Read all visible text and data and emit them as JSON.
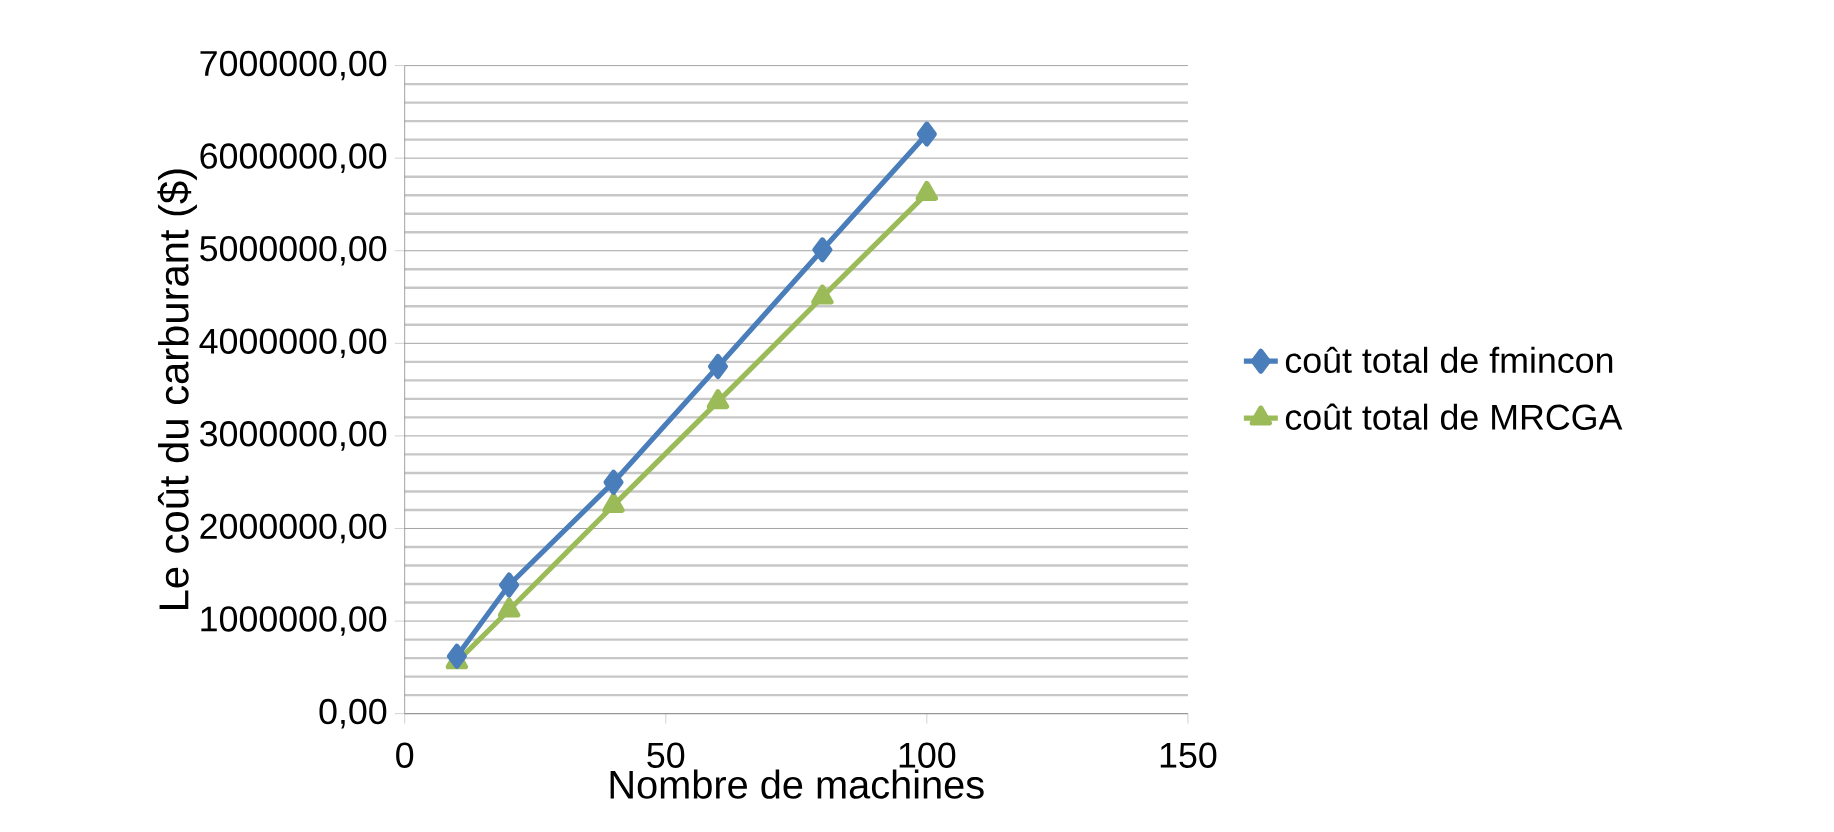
{
  "chart_data": {
    "type": "line",
    "xlabel": "Nombre de machines",
    "ylabel": "Le coût du carburant ($)",
    "x": [
      10,
      20,
      40,
      60,
      80,
      100
    ],
    "series": [
      {
        "name": "coût total  de fmincon",
        "color": "#4a7ebb",
        "marker": "diamond",
        "values": [
          620000,
          1390000,
          2500000,
          3750000,
          5010000,
          6260000
        ]
      },
      {
        "name": "coût total  de MRCGA",
        "color": "#9bbb59",
        "marker": "triangle",
        "values": [
          560000,
          1120000,
          2250000,
          3370000,
          4500000,
          5620000
        ]
      }
    ],
    "xlim": [
      0,
      150
    ],
    "xticks": [
      0,
      50,
      100,
      150
    ],
    "ylim": [
      0,
      7000000
    ],
    "yticks": [
      {
        "value": 0,
        "label": "0,00"
      },
      {
        "value": 1000000,
        "label": "1000000,00"
      },
      {
        "value": 2000000,
        "label": "2000000,00"
      },
      {
        "value": 3000000,
        "label": "3000000,00"
      },
      {
        "value": 4000000,
        "label": "4000000,00"
      },
      {
        "value": 5000000,
        "label": "5000000,00"
      },
      {
        "value": 6000000,
        "label": "6000000,00"
      },
      {
        "value": 7000000,
        "label": "7000000,00"
      }
    ],
    "grid": "y",
    "legend": "right",
    "line_style": "solid"
  }
}
